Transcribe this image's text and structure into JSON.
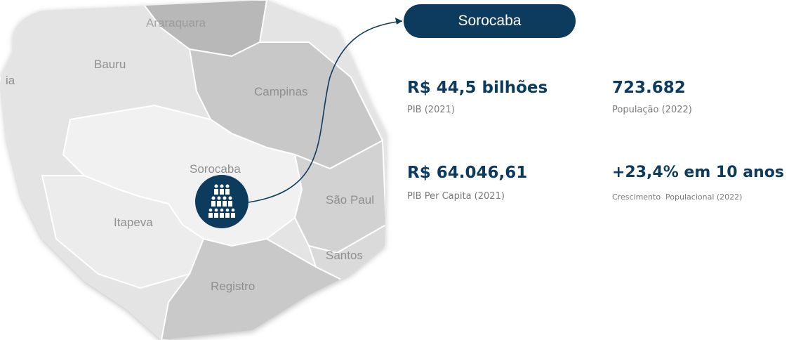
{
  "map": {
    "labels": [
      "Araraquara",
      "Bauru",
      "ia",
      "Campinas",
      "Sorocaba",
      "São Paul",
      "Itapeva",
      "Santos",
      "Registro"
    ]
  },
  "callout": {
    "title": "Sorocaba"
  },
  "stats": [
    {
      "value": "R$ 44,5 bilhões",
      "label": "PIB (2021)"
    },
    {
      "value": "723.682",
      "label": "População (2022)"
    },
    {
      "value": "R$ 64.046,61",
      "label": "PIB Per Capita (2021)"
    },
    {
      "value": "+23,4% em 10 anos",
      "label": "Crescimento  Populacional (2022)"
    }
  ]
}
